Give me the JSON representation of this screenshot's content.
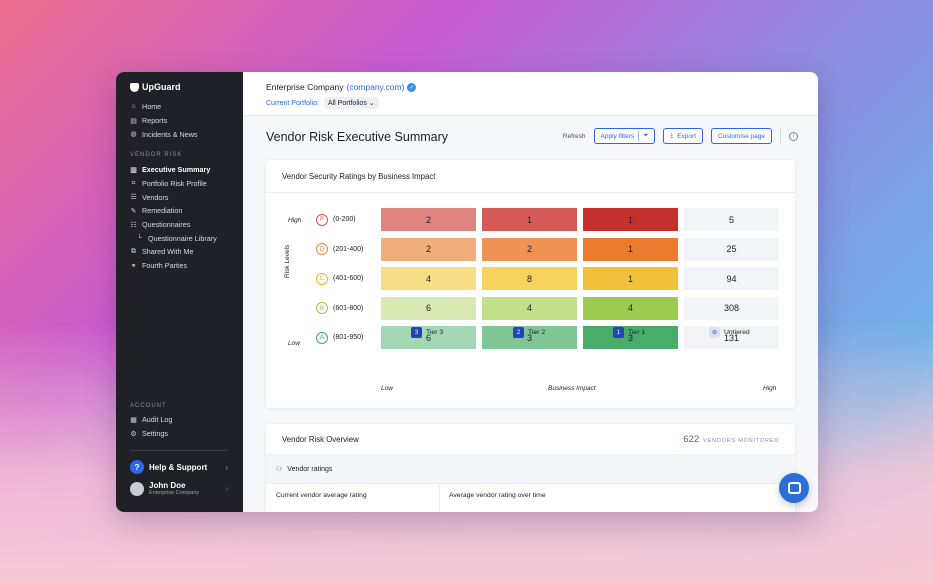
{
  "sidebar": {
    "logo": "UpGuard",
    "top_items": [
      {
        "label": "Home",
        "icon": "home-icon",
        "glyph": "⌂"
      },
      {
        "label": "Reports",
        "icon": "document-icon",
        "glyph": "▤"
      },
      {
        "label": "Incidents & News",
        "icon": "globe-icon",
        "glyph": "◍"
      }
    ],
    "vendor_risk_label": "VENDOR RISK",
    "vendor_items": [
      {
        "label": "Executive Summary",
        "icon": "bar-chart-icon",
        "glyph": "▥",
        "active": true
      },
      {
        "label": "Portfolio Risk Profile",
        "icon": "scan-icon",
        "glyph": "⌗"
      },
      {
        "label": "Vendors",
        "icon": "list-icon",
        "glyph": "☰"
      },
      {
        "label": "Remediation",
        "icon": "wrench-icon",
        "glyph": "✎"
      },
      {
        "label": "Questionnaires",
        "icon": "checklist-icon",
        "glyph": "☷"
      },
      {
        "label": "Questionnaire Library",
        "icon": "tree-branch-icon",
        "glyph": "└",
        "sub": true
      },
      {
        "label": "Shared With Me",
        "icon": "share-icon",
        "glyph": "⧉"
      },
      {
        "label": "Fourth Parties",
        "icon": "link-icon",
        "glyph": "⚭"
      }
    ],
    "account_label": "ACCOUNT",
    "account_items": [
      {
        "label": "Audit Log",
        "icon": "log-icon",
        "glyph": "▦"
      },
      {
        "label": "Settings",
        "icon": "settings-icon",
        "glyph": "⚙"
      }
    ],
    "help_label": "Help & Support",
    "user_name": "John Doe",
    "user_company": "Enterprise Company"
  },
  "header": {
    "company_name": "Enterprise Company",
    "company_domain": "(company.com)",
    "portfolio_label": "Current Portfolio:",
    "portfolio_value": "All Portfolios"
  },
  "page": {
    "title": "Vendor Risk Executive Summary",
    "refresh": "Refresh",
    "apply_filters": "Apply filters",
    "export": "Export",
    "customise": "Customise page"
  },
  "chart_data": {
    "type": "heatmap",
    "title": "Vendor Security Ratings by Business Impact",
    "ylabel": "Risk Levels",
    "xlabel": "Business Impact",
    "y_high": "High",
    "y_low": "Low",
    "x_low": "Low",
    "x_high": "High",
    "rows": [
      {
        "grade": "F",
        "range": "(0-200)",
        "grade_color": "#d9534f"
      },
      {
        "grade": "D",
        "range": "(201-400)",
        "grade_color": "#ec8a3a"
      },
      {
        "grade": "C",
        "range": "(401-600)",
        "grade_color": "#e6b623"
      },
      {
        "grade": "B",
        "range": "(601-800)",
        "grade_color": "#9fc545"
      },
      {
        "grade": "A",
        "range": "(801-950)",
        "grade_color": "#3fab68"
      }
    ],
    "columns": [
      {
        "badge": "3",
        "label": "Tier 3"
      },
      {
        "badge": "2",
        "label": "Tier 2"
      },
      {
        "badge": "1",
        "label": "Tier 1"
      },
      {
        "badge": "⊖",
        "label": "Untiered"
      }
    ],
    "values": [
      [
        2,
        1,
        1,
        5
      ],
      [
        2,
        2,
        1,
        25
      ],
      [
        4,
        8,
        1,
        94
      ],
      [
        6,
        4,
        4,
        308
      ],
      [
        6,
        3,
        3,
        131
      ]
    ],
    "colors": [
      [
        "#df8580",
        "#d55a57",
        "#c4302b",
        "#f3f4f7"
      ],
      [
        "#f2ad7c",
        "#ef9253",
        "#ec7a2f",
        "#f3f4f7"
      ],
      [
        "#f8df87",
        "#f6d35c",
        "#f2c13c",
        "#f3f4f7"
      ],
      [
        "#d8eab2",
        "#c3df88",
        "#9ccc4f",
        "#f3f4f7"
      ],
      [
        "#a4d8b4",
        "#7fc796",
        "#48ad69",
        "#f3f4f7"
      ]
    ]
  },
  "overview": {
    "title": "Vendor Risk Overview",
    "monitored_count": "622",
    "monitored_label": "VENDORS MONITORED",
    "vendor_ratings": "Vendor ratings",
    "current_avg": "Current vendor average rating",
    "avg_over_time": "Average vendor rating over time"
  }
}
